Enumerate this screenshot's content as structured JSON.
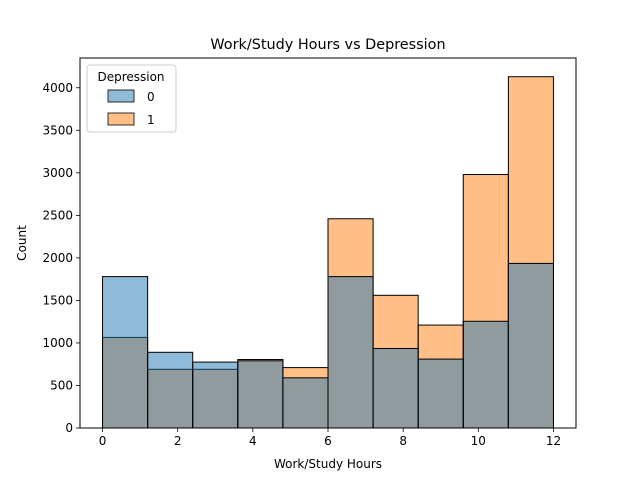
{
  "chart_data": {
    "type": "bar",
    "title": "Work/Study Hours vs Depression",
    "xlabel": "Work/Study Hours",
    "ylabel": "Count",
    "xlim": [
      -0.6,
      12.6
    ],
    "ylim": [
      0,
      4350
    ],
    "xticks": [
      0,
      2,
      4,
      6,
      8,
      10,
      12
    ],
    "yticks": [
      0,
      500,
      1000,
      1500,
      2000,
      2500,
      3000,
      3500,
      4000
    ],
    "bin_edges": [
      0,
      1.2,
      2.4,
      3.6,
      4.8,
      6.0,
      7.2,
      8.4,
      9.6,
      10.8,
      12.0
    ],
    "grid": false,
    "legend_position": "top-left",
    "legend_title": "Depression",
    "series": [
      {
        "name": "0",
        "color": "#1f77b4",
        "values": [
          1780,
          890,
          775,
          790,
          590,
          1780,
          935,
          810,
          1255,
          1935
        ]
      },
      {
        "name": "1",
        "color": "#ff7f0e",
        "values": [
          1065,
          690,
          690,
          805,
          710,
          2460,
          1560,
          1210,
          2980,
          4130
        ]
      }
    ]
  }
}
